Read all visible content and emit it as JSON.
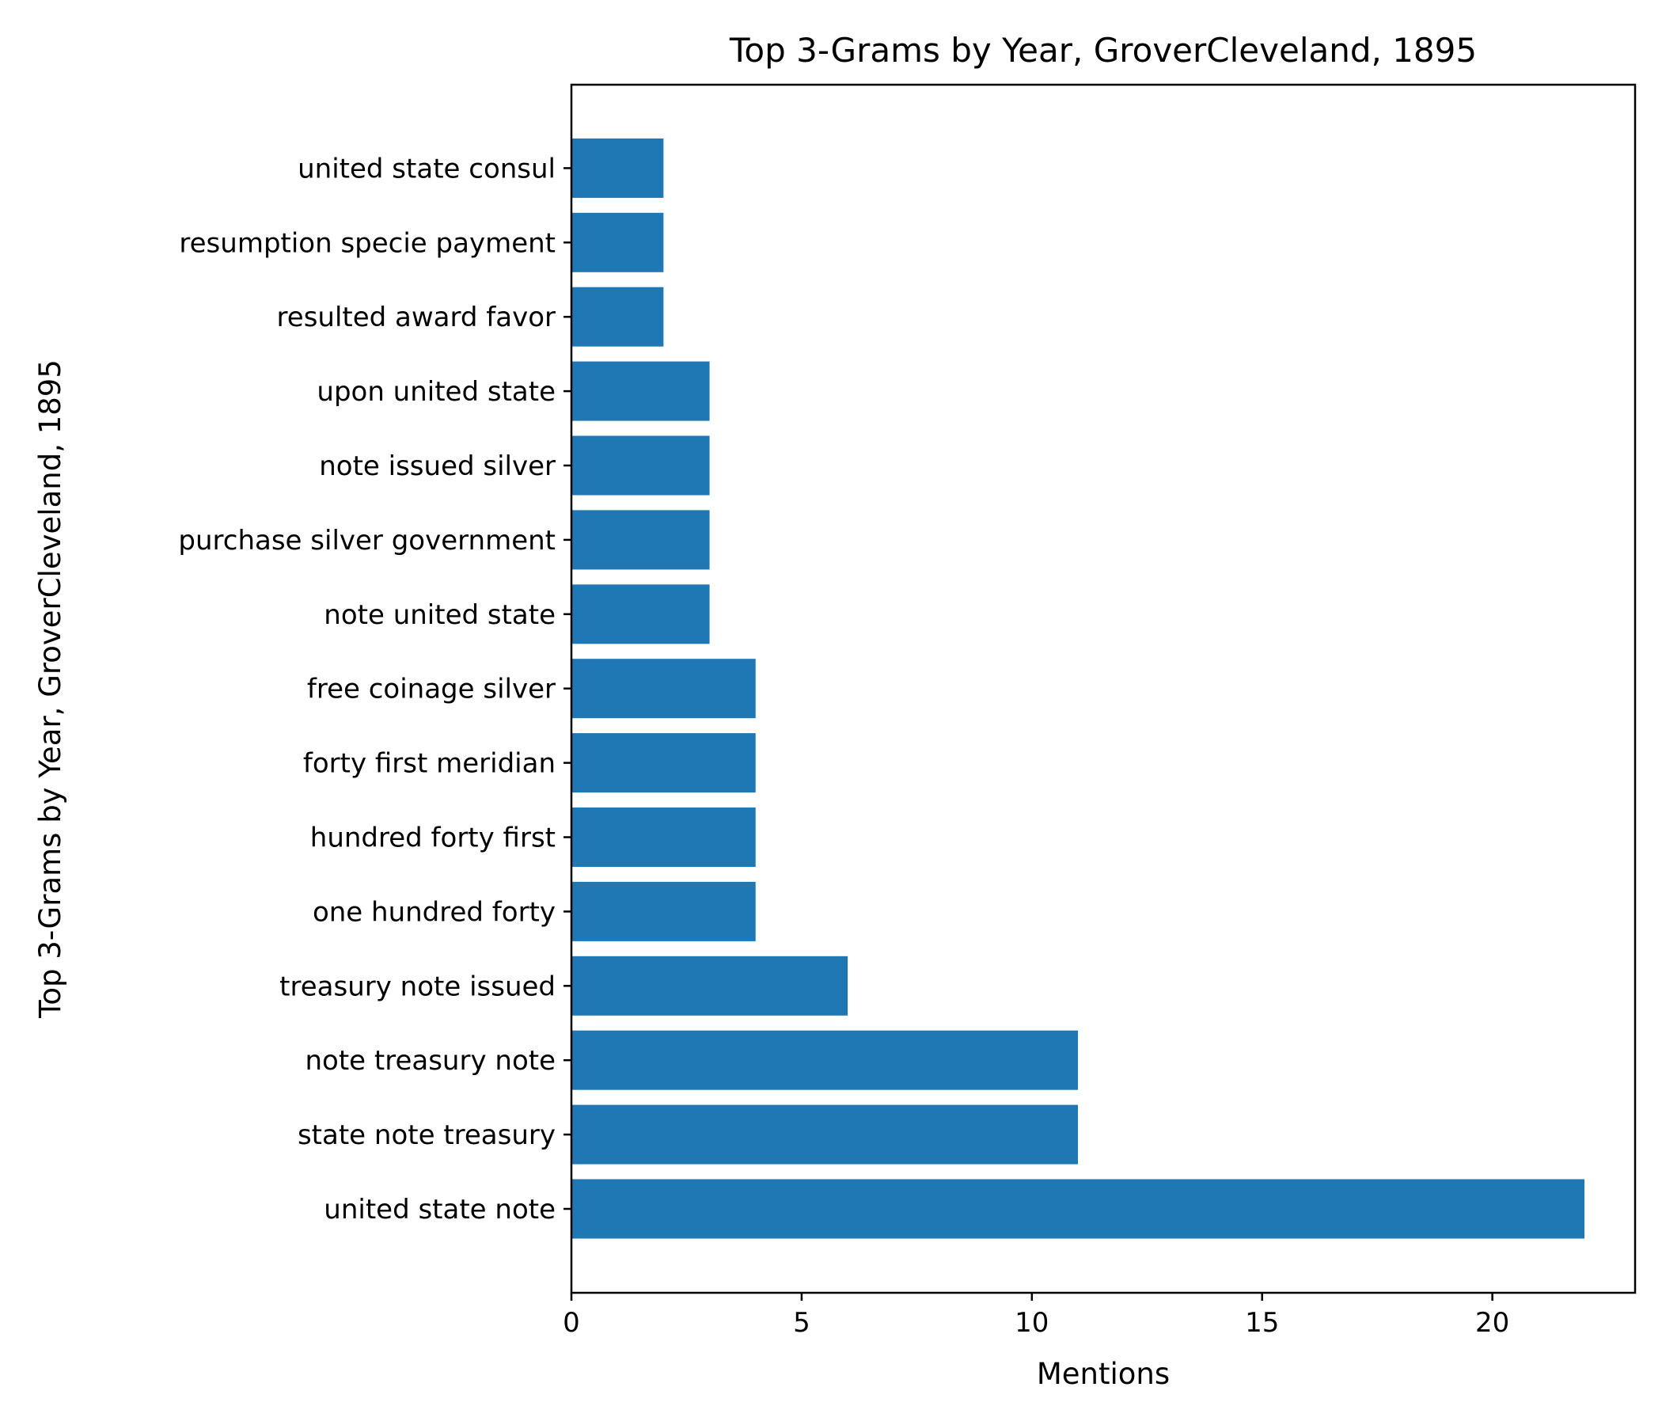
{
  "chart_data": {
    "type": "bar",
    "orientation": "horizontal",
    "title": "Top 3-Grams by Year, GroverCleveland, 1895",
    "xlabel": "Mentions",
    "ylabel": "Top 3-Grams by Year, GroverCleveland, 1895",
    "categories": [
      "united state note",
      "state note treasury",
      "note treasury note",
      "treasury note issued",
      "one hundred forty",
      "hundred forty first",
      "forty first meridian",
      "free coinage silver",
      "note united state",
      "purchase silver government",
      "note issued silver",
      "upon united state",
      "resulted award favor",
      "resumption specie payment",
      "united state consul"
    ],
    "values": [
      22,
      11,
      11,
      6,
      4,
      4,
      4,
      4,
      3,
      3,
      3,
      3,
      2,
      2,
      2
    ],
    "xlim": [
      0,
      23.1
    ],
    "xticks": [
      0,
      5,
      10,
      15,
      20
    ],
    "grid": false,
    "bar_color": "#1f77b4"
  }
}
